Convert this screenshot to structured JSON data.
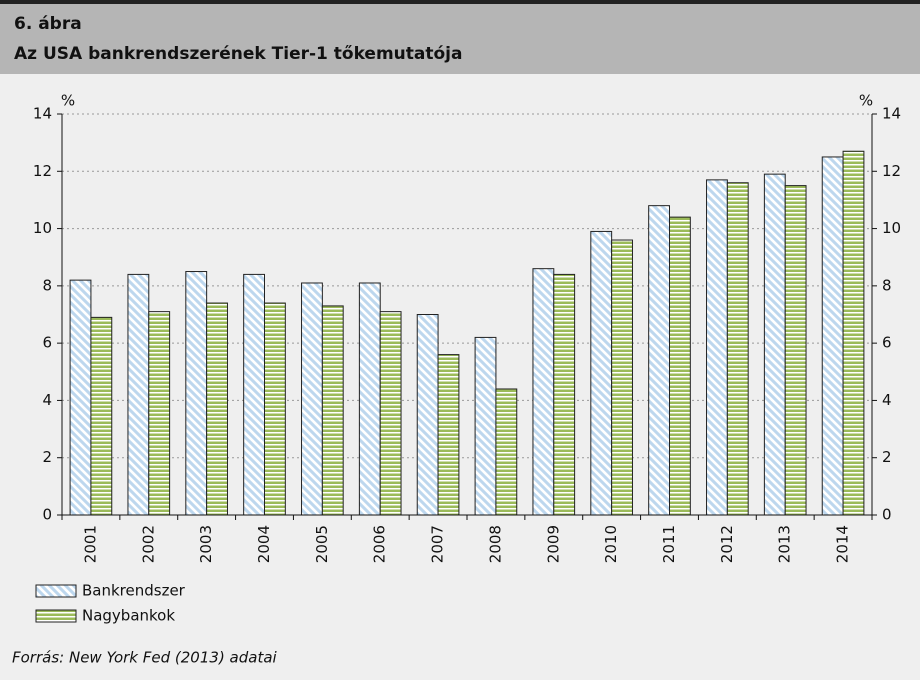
{
  "chart_data": {
    "type": "bar",
    "label": "6. ábra",
    "title": "Az USA bankrendszerének Tier-1 tőkemutatója",
    "y_unit": "%",
    "y2_unit": "%",
    "source": "Forrás: New York Fed (2013) adatai",
    "categories": [
      "2001",
      "2002",
      "2003",
      "2004",
      "2005",
      "2006",
      "2007",
      "2008",
      "2009",
      "2010",
      "2011",
      "2012",
      "2013",
      "2014"
    ],
    "series": [
      {
        "name": "Bankrendszer",
        "color": "#bdd7ee",
        "pattern": "diagonal",
        "values": [
          8.2,
          8.4,
          8.5,
          8.4,
          8.1,
          8.1,
          7.0,
          6.2,
          8.6,
          9.9,
          10.8,
          11.7,
          11.9,
          12.5
        ]
      },
      {
        "name": "Nagybankok",
        "color": "#9bbb59",
        "pattern": "horizontal",
        "values": [
          6.9,
          7.1,
          7.4,
          7.4,
          7.3,
          7.1,
          5.6,
          4.4,
          8.4,
          9.6,
          10.4,
          11.6,
          11.5,
          12.7
        ]
      }
    ],
    "ylim": [
      0,
      14
    ],
    "yticks": [
      0,
      2,
      4,
      6,
      8,
      10,
      12,
      14
    ],
    "y2lim": [
      0,
      14
    ],
    "y2ticks": [
      0,
      2,
      4,
      6,
      8,
      10,
      12,
      14
    ],
    "grid": true
  }
}
